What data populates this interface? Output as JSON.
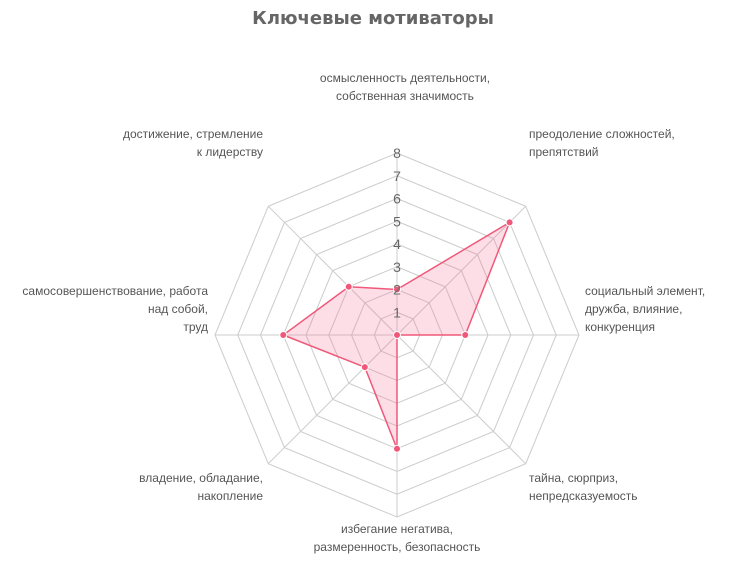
{
  "chart_data": {
    "type": "radar",
    "title": "Ключевые мотиваторы",
    "axes": [
      "осмысленность деятельности, собственная значимость",
      "преодоление сложностей, препятствий",
      "социальный элемент, дружба, влияние, конкуренция",
      "тайна, сюрприз, непредсказуемость",
      "избегание негатива, размеренность, безопасность",
      "владение, обладание, накопление",
      "самосовершенствование, работа над собой, труд",
      "достижение, стремление к лидерству"
    ],
    "axis_label_lines": [
      [
        "осмысленность деятельности,",
        "собственная значимость"
      ],
      [
        "преодоление сложностей,",
        "препятствий"
      ],
      [
        "социальный элемент,",
        "дружба, влияние,",
        "конкуренция"
      ],
      [
        "тайна, сюрприз,",
        "непредсказуемость"
      ],
      [
        "избегание негатива,",
        "размеренность, безопасность"
      ],
      [
        "владение, обладание,",
        "накопление"
      ],
      [
        "самосовершенствование, работа",
        "над собой,",
        "труд"
      ],
      [
        "достижение, стремление",
        "к лидерству"
      ]
    ],
    "series": [
      {
        "name": "Ключевые мотиваторы",
        "values": [
          2,
          7,
          3,
          0,
          5,
          2,
          5,
          3
        ]
      }
    ],
    "ticks": [
      1,
      2,
      3,
      4,
      5,
      6,
      7,
      8
    ],
    "rlim": [
      0,
      8
    ],
    "grid": true,
    "legend": false,
    "colors": {
      "line": "#f0587a",
      "point": "#f0587a",
      "fill": "rgba(245, 105, 140, 0.22)",
      "grid": "#cccccc",
      "tick_text": "#666666",
      "label_text": "#555555",
      "title_text": "#666666"
    }
  }
}
